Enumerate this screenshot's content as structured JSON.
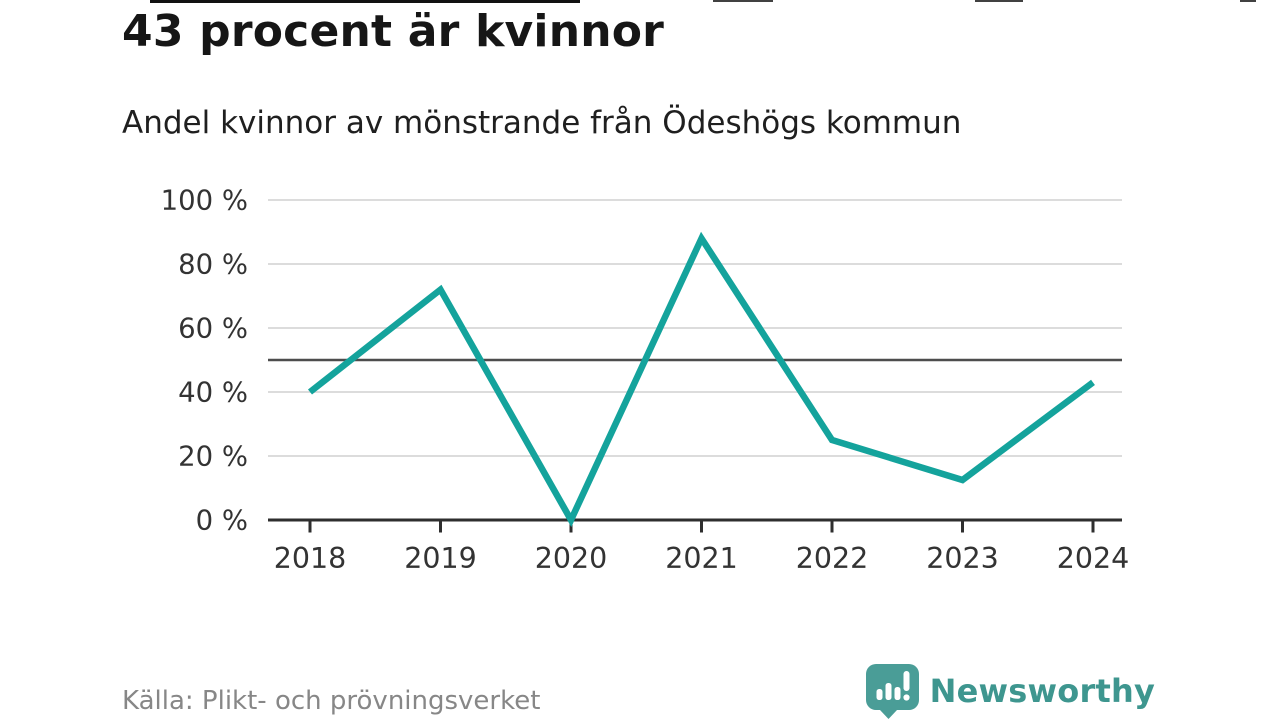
{
  "header": {
    "title": "43 procent är kvinnor",
    "subtitle": "Andel kvinnor av mönstrande från Ödeshögs kommun"
  },
  "footer": {
    "source": "Källa: Plikt- och prövningsverket",
    "brand": "Newsworthy",
    "brand_color": "#3E968F",
    "brand_mark_color": "#4A9D97"
  },
  "chart_data": {
    "type": "line",
    "title": "43 procent är kvinnor",
    "subtitle": "Andel kvinnor av mönstrande från Ödeshögs kommun",
    "x": [
      "2018",
      "2019",
      "2020",
      "2021",
      "2022",
      "2023",
      "2024"
    ],
    "series": [
      {
        "name": "Andel kvinnor av mönstrande",
        "values": [
          40,
          72,
          0,
          88,
          25,
          12.5,
          43
        ]
      }
    ],
    "ylim": [
      0,
      100
    ],
    "y_ticks": [
      0,
      20,
      40,
      60,
      80,
      100
    ],
    "y_tick_suffix": " %",
    "reference_line": 50,
    "grid": true,
    "legend": "none",
    "xlabel": "",
    "ylabel": "",
    "colors": {
      "line": "#14A39C",
      "grid": "#dcdcdc",
      "reference": "#4d4d4d",
      "axis": "#2e2e2e",
      "tick_text": "#333333"
    }
  }
}
